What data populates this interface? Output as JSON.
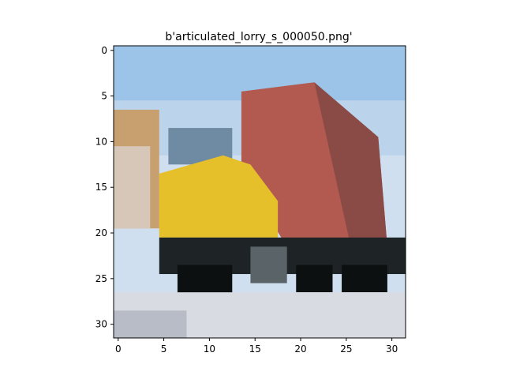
{
  "figure": {
    "title": "b'articulated_lorry_s_000050.png'",
    "image_size": [
      32,
      32
    ],
    "subject": "articulated lorry",
    "x_ticks": [
      0,
      5,
      10,
      15,
      20,
      25,
      30
    ],
    "y_ticks": [
      0,
      5,
      10,
      15,
      20,
      25,
      30
    ],
    "colors": {
      "sky_top": "#9cc4e8",
      "sky_bottom": "#cfdff0",
      "trailer_red": "#b25a50",
      "trailer_dark": "#8a4a45",
      "cab_yellow": "#e6c02a",
      "cab_window": "#6f8aa3",
      "chassis_dark": "#1e2426",
      "wheel_black": "#0c1010",
      "building_tan": "#c8a070",
      "ground": "#d8dbe2",
      "ground_shadow": "#b8bcc6"
    }
  }
}
